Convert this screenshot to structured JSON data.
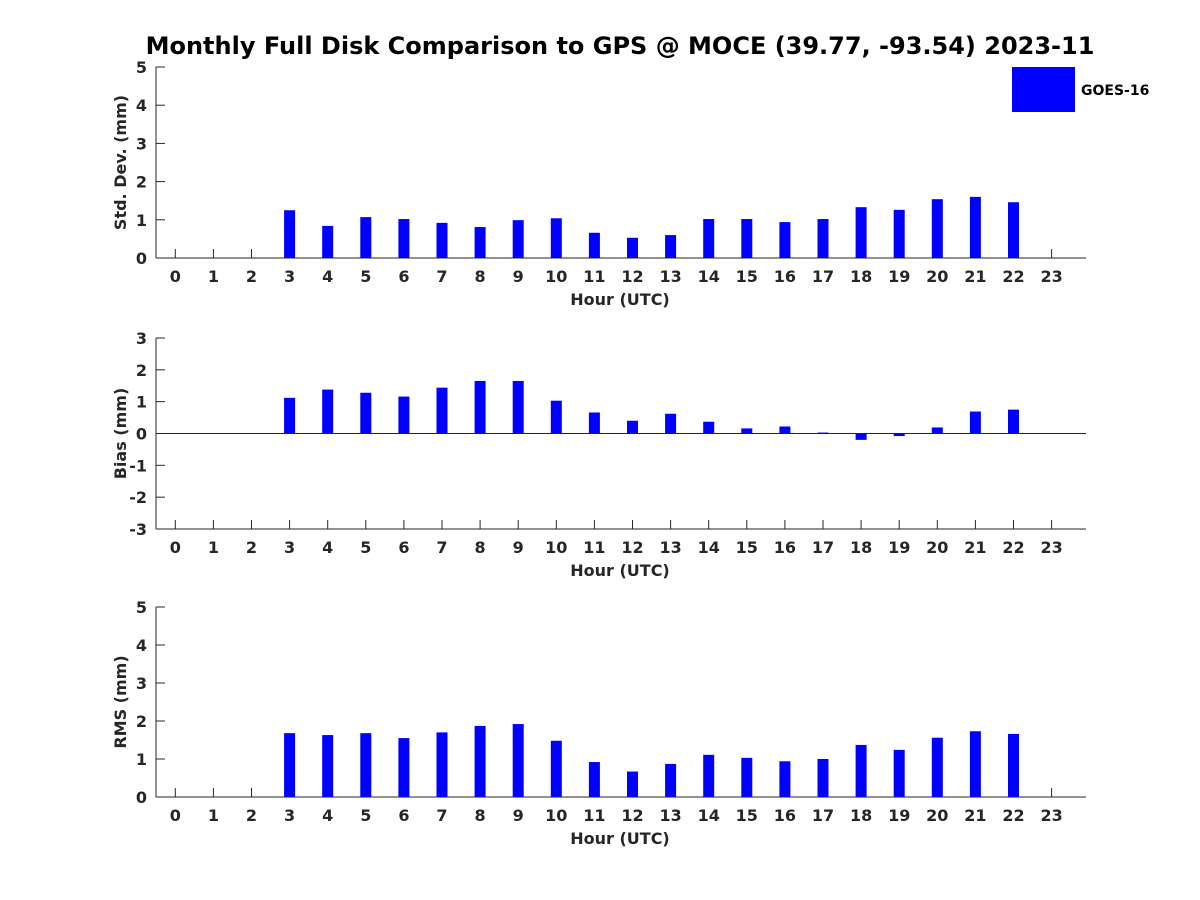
{
  "title": "Monthly Full Disk Comparison to GPS @ MOCE (39.77, -93.54) 2023-11",
  "legend": {
    "label": "GOES-16",
    "color": "#0000ff"
  },
  "chart_data": [
    {
      "type": "bar",
      "name": "stddev",
      "ylabel": "Std. Dev. (mm)",
      "xlabel": "Hour (UTC)",
      "ylim": [
        0,
        5
      ],
      "yticks": [
        0,
        1,
        2,
        3,
        4,
        5
      ],
      "x": [
        0,
        1,
        2,
        3,
        4,
        5,
        6,
        7,
        8,
        9,
        10,
        11,
        12,
        13,
        14,
        15,
        16,
        17,
        18,
        19,
        20,
        21,
        22,
        23
      ],
      "xtick_labels": [
        "0",
        "1",
        "2",
        "3",
        "4",
        "5",
        "6",
        "7",
        "8",
        "9",
        "10",
        "11",
        "12",
        "13",
        "14",
        "15",
        "16",
        "17",
        "18",
        "19",
        "20",
        "21",
        "22",
        "23"
      ],
      "series": [
        {
          "name": "GOES-16",
          "values": [
            null,
            null,
            null,
            1.25,
            0.84,
            1.07,
            1.02,
            0.92,
            0.81,
            0.99,
            1.04,
            0.66,
            0.53,
            0.6,
            1.02,
            1.02,
            0.94,
            1.02,
            1.33,
            1.26,
            1.54,
            1.6,
            1.46,
            null
          ]
        }
      ]
    },
    {
      "type": "bar",
      "name": "bias",
      "ylabel": "Bias (mm)",
      "xlabel": "Hour (UTC)",
      "ylim": [
        -3,
        3
      ],
      "yticks": [
        -3,
        -2,
        -1,
        0,
        1,
        2,
        3
      ],
      "x": [
        0,
        1,
        2,
        3,
        4,
        5,
        6,
        7,
        8,
        9,
        10,
        11,
        12,
        13,
        14,
        15,
        16,
        17,
        18,
        19,
        20,
        21,
        22,
        23
      ],
      "xtick_labels": [
        "0",
        "1",
        "2",
        "3",
        "4",
        "5",
        "6",
        "7",
        "8",
        "9",
        "10",
        "11",
        "12",
        "13",
        "14",
        "15",
        "16",
        "17",
        "18",
        "19",
        "20",
        "21",
        "22",
        "23"
      ],
      "zero_line": true,
      "series": [
        {
          "name": "GOES-16",
          "values": [
            null,
            null,
            null,
            1.12,
            1.38,
            1.28,
            1.16,
            1.44,
            1.65,
            1.65,
            1.03,
            0.66,
            0.4,
            0.62,
            0.37,
            0.16,
            0.22,
            0.03,
            -0.2,
            -0.08,
            0.19,
            0.69,
            0.75,
            null
          ]
        }
      ]
    },
    {
      "type": "bar",
      "name": "rms",
      "ylabel": "RMS (mm)",
      "xlabel": "Hour (UTC)",
      "ylim": [
        0,
        5
      ],
      "yticks": [
        0,
        1,
        2,
        3,
        4,
        5
      ],
      "x": [
        0,
        1,
        2,
        3,
        4,
        5,
        6,
        7,
        8,
        9,
        10,
        11,
        12,
        13,
        14,
        15,
        16,
        17,
        18,
        19,
        20,
        21,
        22,
        23
      ],
      "xtick_labels": [
        "0",
        "1",
        "2",
        "3",
        "4",
        "5",
        "6",
        "7",
        "8",
        "9",
        "10",
        "11",
        "12",
        "13",
        "14",
        "15",
        "16",
        "17",
        "18",
        "19",
        "20",
        "21",
        "22",
        "23"
      ],
      "series": [
        {
          "name": "GOES-16",
          "values": [
            null,
            null,
            null,
            1.68,
            1.63,
            1.68,
            1.55,
            1.7,
            1.87,
            1.92,
            1.48,
            0.92,
            0.67,
            0.87,
            1.11,
            1.03,
            0.94,
            1.0,
            1.37,
            1.24,
            1.56,
            1.73,
            1.66,
            null
          ]
        }
      ]
    }
  ]
}
